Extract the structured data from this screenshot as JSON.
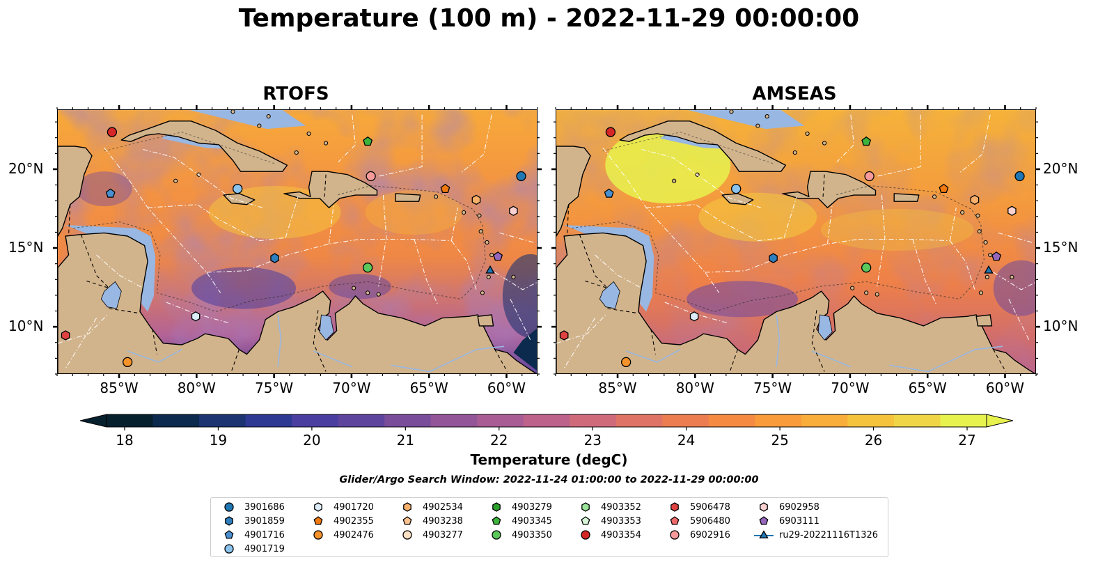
{
  "title": "Temperature (100 m) - 2022-11-29 00:00:00",
  "panels": [
    {
      "title": "RTOFS",
      "variant": "rtofs"
    },
    {
      "title": "AMSEAS",
      "variant": "amseas"
    }
  ],
  "axes": {
    "lon_ticks": [
      "85°W",
      "80°W",
      "75°W",
      "70°W",
      "65°W",
      "60°W"
    ],
    "lat_ticks": [
      "20°N",
      "15°N",
      "10°N"
    ],
    "lon_values": [
      -85,
      -80,
      -75,
      -70,
      -65,
      -60
    ],
    "lat_values": [
      20,
      15,
      10
    ]
  },
  "colorbar": {
    "label": "Temperature (degC)",
    "ticks": [
      "18",
      "19",
      "20",
      "21",
      "22",
      "23",
      "24",
      "25",
      "26",
      "27"
    ],
    "min": 18,
    "max": 27,
    "extend": "both",
    "colors": [
      "#06202e",
      "#0b2a4d",
      "#1c3472",
      "#2e3993",
      "#4a3ea0",
      "#5f449e",
      "#7a4d9b",
      "#935598",
      "#a95c93",
      "#bd628a",
      "#cf6a7b",
      "#df7365",
      "#eb7d51",
      "#f58a42",
      "#f99b3b",
      "#f9ad3a",
      "#f6c33c",
      "#f0d646",
      "#e7f24e"
    ]
  },
  "search_window": "Glider/Argo Search Window: 2022-11-24 01:00:00 to 2022-11-29 00:00:00",
  "legend": [
    {
      "label": "3901686",
      "marker": "circle",
      "color": "#1f77b4"
    },
    {
      "label": "3901859",
      "marker": "hexagon",
      "color": "#2f7fbf"
    },
    {
      "label": "4901716",
      "marker": "pentagon",
      "color": "#4a90d0"
    },
    {
      "label": "4901719",
      "marker": "circle",
      "color": "#8cc4ee"
    },
    {
      "label": "4901720",
      "marker": "hexagon",
      "color": "#dcecf8"
    },
    {
      "label": "4902355",
      "marker": "pentagon",
      "color": "#f07a10"
    },
    {
      "label": "4902476",
      "marker": "circle",
      "color": "#f5922a"
    },
    {
      "label": "4902534",
      "marker": "hexagon",
      "color": "#f9b06a"
    },
    {
      "label": "4903238",
      "marker": "pentagon",
      "color": "#fbc390"
    },
    {
      "label": "4903277",
      "marker": "circle",
      "color": "#fde1c4"
    },
    {
      "label": "4903279",
      "marker": "hexagon",
      "color": "#2ca02c"
    },
    {
      "label": "4903345",
      "marker": "pentagon",
      "color": "#3cb43c"
    },
    {
      "label": "4903350",
      "marker": "circle",
      "color": "#5cc85c"
    },
    {
      "label": "4903352",
      "marker": "hexagon",
      "color": "#98e498"
    },
    {
      "label": "4903353",
      "marker": "pentagon",
      "color": "#d8f6d8"
    },
    {
      "label": "4903354",
      "marker": "circle",
      "color": "#d62728"
    },
    {
      "label": "5906478",
      "marker": "hexagon",
      "color": "#e04242"
    },
    {
      "label": "5906480",
      "marker": "pentagon",
      "color": "#ee6a6a"
    },
    {
      "label": "6902916",
      "marker": "circle",
      "color": "#f79a9a"
    },
    {
      "label": "6902958",
      "marker": "hexagon",
      "color": "#fbd0d0"
    },
    {
      "label": "6903111",
      "marker": "pentagon",
      "color": "#9467bd"
    },
    {
      "label": "ru29-20221116T1326",
      "marker": "triangle-line",
      "color": "#1f77b4"
    }
  ],
  "floats": [
    {
      "id": "4903354",
      "lon": -85.5,
      "lat": 22.4
    },
    {
      "id": "4901716",
      "lon": -85.6,
      "lat": 18.5
    },
    {
      "id": "4901719",
      "lon": -77.4,
      "lat": 18.8
    },
    {
      "id": "4903345",
      "lon": -69.0,
      "lat": 21.8
    },
    {
      "id": "6902916",
      "lon": -68.8,
      "lat": 19.6
    },
    {
      "id": "3901686",
      "lon": -59.1,
      "lat": 19.6
    },
    {
      "id": "4902355",
      "lon": -64.0,
      "lat": 18.8
    },
    {
      "id": "4902534",
      "lon": -62.0,
      "lat": 18.1
    },
    {
      "id": "6902958",
      "lon": -59.6,
      "lat": 17.4
    },
    {
      "id": "3901859",
      "lon": -75.0,
      "lat": 14.4
    },
    {
      "id": "4903350",
      "lon": -69.0,
      "lat": 13.8
    },
    {
      "id": "6903111",
      "lon": -60.6,
      "lat": 14.5
    },
    {
      "id": "ru29-20221116T1326",
      "lon": -61.1,
      "lat": 13.6
    },
    {
      "id": "4901720",
      "lon": -80.1,
      "lat": 10.7
    },
    {
      "id": "5906478",
      "lon": -88.5,
      "lat": 9.5
    },
    {
      "id": "4902476",
      "lon": -84.5,
      "lat": 7.8
    }
  ]
}
